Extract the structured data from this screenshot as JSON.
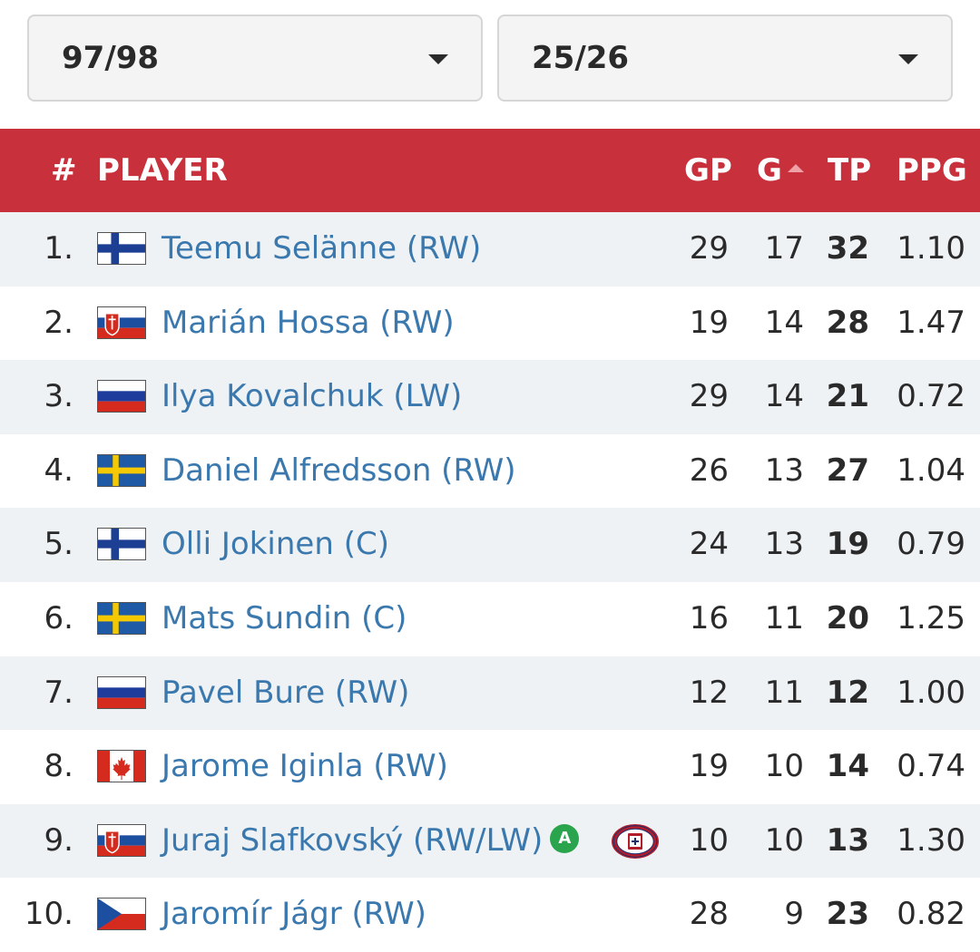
{
  "filters": {
    "from_season": "97/98",
    "to_season": "25/26"
  },
  "colors": {
    "header_bg": "#c8303c",
    "link": "#3b78ad",
    "row_alt": "#eef2f5",
    "badge": "#2aa54d"
  },
  "table": {
    "headers": {
      "num": "#",
      "player": "PLAYER",
      "gp": "GP",
      "g": "G",
      "tp": "TP",
      "ppg": "PPG"
    },
    "sorted_by": "G",
    "rows": [
      {
        "rank": "1.",
        "name": "Teemu Selänne (RW)",
        "flag": "fin",
        "gp": "29",
        "g": "17",
        "tp": "32",
        "ppg": "1.10"
      },
      {
        "rank": "2.",
        "name": "Marián Hossa (RW)",
        "flag": "svk",
        "gp": "19",
        "g": "14",
        "tp": "28",
        "ppg": "1.47"
      },
      {
        "rank": "3.",
        "name": "Ilya Kovalchuk (LW)",
        "flag": "rus",
        "gp": "29",
        "g": "14",
        "tp": "21",
        "ppg": "0.72"
      },
      {
        "rank": "4.",
        "name": "Daniel Alfredsson (RW)",
        "flag": "swe",
        "gp": "26",
        "g": "13",
        "tp": "27",
        "ppg": "1.04"
      },
      {
        "rank": "5.",
        "name": "Olli Jokinen (C)",
        "flag": "fin",
        "gp": "24",
        "g": "13",
        "tp": "19",
        "ppg": "0.79"
      },
      {
        "rank": "6.",
        "name": "Mats Sundin (C)",
        "flag": "swe",
        "gp": "16",
        "g": "11",
        "tp": "20",
        "ppg": "1.25"
      },
      {
        "rank": "7.",
        "name": "Pavel Bure (RW)",
        "flag": "rus",
        "gp": "12",
        "g": "11",
        "tp": "12",
        "ppg": "1.00"
      },
      {
        "rank": "8.",
        "name": "Jarome Iginla (RW)",
        "flag": "can",
        "gp": "19",
        "g": "10",
        "tp": "14",
        "ppg": "0.74"
      },
      {
        "rank": "9.",
        "name": "Juraj Slafkovský (RW/LW)",
        "flag": "svk",
        "badge": "A",
        "team_logo": "canadiens-logo-icon",
        "gp": "10",
        "g": "10",
        "tp": "13",
        "ppg": "1.30"
      },
      {
        "rank": "10.",
        "name": "Jaromír Jágr (RW)",
        "flag": "cze",
        "gp": "28",
        "g": "9",
        "tp": "23",
        "ppg": "0.82"
      }
    ]
  }
}
